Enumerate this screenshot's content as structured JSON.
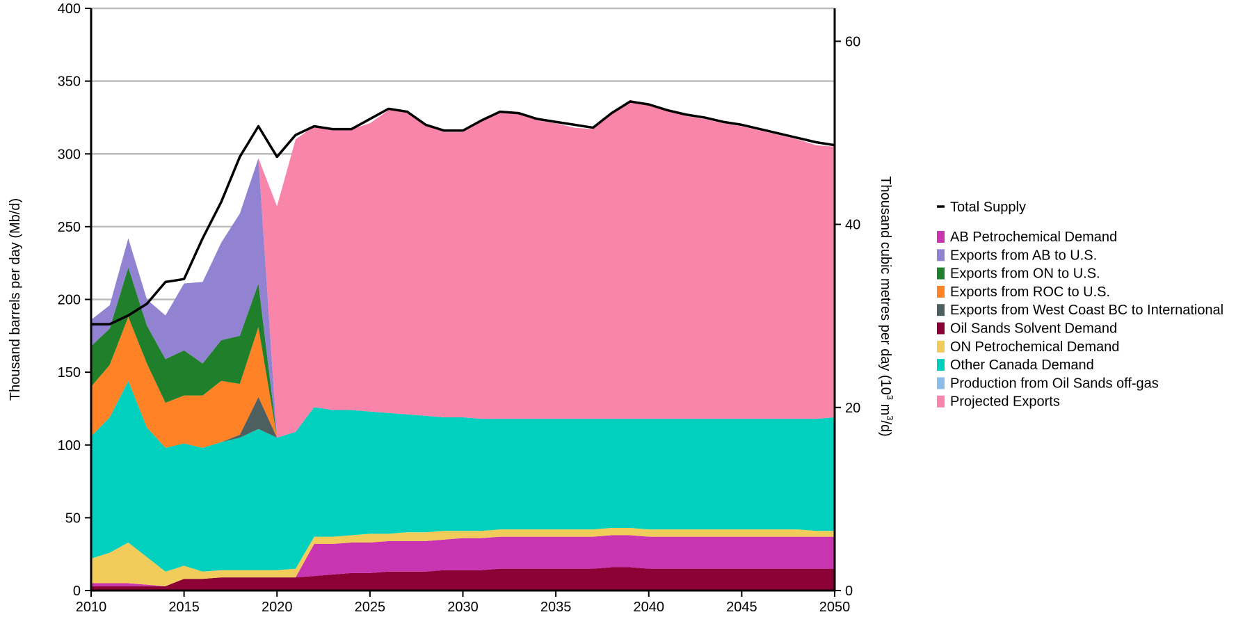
{
  "chart_data": {
    "type": "area",
    "title": "",
    "ylabel": "Thousand barrels per day (Mb/d)",
    "y2label_main": "Thousand cubic metres per day (10",
    "y2label_sup": "3",
    "y2label_mid": " m",
    "y2label_sup2": "3",
    "y2label_end": "/d)",
    "xlim": [
      2010,
      2050
    ],
    "ylim": [
      0,
      400
    ],
    "y2lim": [
      0,
      63.6
    ],
    "x_ticks": [
      "2010",
      "2015",
      "2020",
      "2025",
      "2030",
      "2035",
      "2040",
      "2045",
      "2050"
    ],
    "y_ticks": [
      "0",
      "50",
      "100",
      "150",
      "200",
      "250",
      "300",
      "350",
      "400"
    ],
    "y2_ticks": [
      "0",
      "20",
      "40",
      "60"
    ],
    "grid": "horizontal",
    "legend_position": "right",
    "x": [
      2010,
      2011,
      2012,
      2013,
      2014,
      2015,
      2016,
      2017,
      2018,
      2019,
      2020,
      2021,
      2022,
      2023,
      2024,
      2025,
      2026,
      2027,
      2028,
      2029,
      2030,
      2031,
      2032,
      2033,
      2034,
      2035,
      2036,
      2037,
      2038,
      2039,
      2040,
      2041,
      2042,
      2043,
      2044,
      2045,
      2046,
      2047,
      2048,
      2049,
      2050
    ],
    "series": [
      {
        "name": "Oil Sands Solvent Demand",
        "color": "#8B0035",
        "values": [
          3,
          3,
          3,
          3,
          3,
          8,
          8,
          9,
          9,
          9,
          9,
          9,
          10,
          11,
          12,
          12,
          13,
          13,
          13,
          14,
          14,
          14,
          15,
          15,
          15,
          15,
          15,
          15,
          16,
          16,
          15,
          15,
          15,
          15,
          15,
          15,
          15,
          15,
          15,
          15,
          15
        ]
      },
      {
        "name": "AB Petrochemical Demand",
        "color": "#C935B0",
        "values": [
          2,
          2,
          2,
          1,
          0,
          0,
          0,
          0,
          0,
          0,
          0,
          0,
          22,
          21,
          21,
          21,
          21,
          21,
          21,
          21,
          22,
          22,
          22,
          22,
          22,
          22,
          22,
          22,
          22,
          22,
          22,
          22,
          22,
          22,
          22,
          22,
          22,
          22,
          22,
          22,
          22
        ]
      },
      {
        "name": "ON Petrochemical Demand",
        "color": "#F2CC5B",
        "values": [
          17,
          21,
          28,
          19,
          10,
          9,
          5,
          5,
          5,
          5,
          5,
          6,
          5,
          5,
          5,
          6,
          5,
          6,
          6,
          6,
          5,
          5,
          5,
          5,
          5,
          5,
          5,
          5,
          5,
          5,
          5,
          5,
          5,
          5,
          5,
          5,
          5,
          5,
          5,
          4,
          4
        ]
      },
      {
        "name": "Other Canada Demand",
        "color": "#00D0BD",
        "values": [
          84,
          93,
          111,
          89,
          85,
          84,
          85,
          88,
          91,
          97,
          91,
          94,
          89,
          87,
          86,
          84,
          83,
          81,
          80,
          78,
          78,
          77,
          76,
          76,
          76,
          76,
          76,
          76,
          75,
          75,
          76,
          76,
          76,
          76,
          76,
          76,
          76,
          76,
          76,
          77,
          78
        ]
      },
      {
        "name": "Production from Oil Sands off-gas",
        "color": "#8CBDE8",
        "values": [
          0,
          0,
          0,
          0,
          0,
          0,
          0,
          0,
          0,
          0,
          0,
          0,
          0,
          0,
          0,
          0,
          0,
          0,
          0,
          0,
          0,
          0,
          0,
          0,
          0,
          0,
          0,
          0,
          0,
          0,
          0,
          0,
          0,
          0,
          0,
          0,
          0,
          0,
          0,
          0,
          0
        ]
      },
      {
        "name": "Exports from West Coast BC to International",
        "color": "#4D5F5F",
        "values": [
          0,
          0,
          0,
          0,
          0,
          0,
          0,
          0,
          2,
          22,
          0,
          0,
          0,
          0,
          0,
          0,
          0,
          0,
          0,
          0,
          0,
          0,
          0,
          0,
          0,
          0,
          0,
          0,
          0,
          0,
          0,
          0,
          0,
          0,
          0,
          0,
          0,
          0,
          0,
          0,
          0
        ]
      },
      {
        "name": "Exports from ROC to U.S.",
        "color": "#FF8226",
        "values": [
          34,
          36,
          44,
          44,
          31,
          33,
          36,
          42,
          35,
          48,
          0,
          0,
          0,
          0,
          0,
          0,
          0,
          0,
          0,
          0,
          0,
          0,
          0,
          0,
          0,
          0,
          0,
          0,
          0,
          0,
          0,
          0,
          0,
          0,
          0,
          0,
          0,
          0,
          0,
          0,
          0
        ]
      },
      {
        "name": "Exports from ON to U.S.",
        "color": "#1F7F2A",
        "values": [
          28,
          25,
          34,
          26,
          30,
          31,
          22,
          28,
          33,
          30,
          0,
          0,
          0,
          0,
          0,
          0,
          0,
          0,
          0,
          0,
          0,
          0,
          0,
          0,
          0,
          0,
          0,
          0,
          0,
          0,
          0,
          0,
          0,
          0,
          0,
          0,
          0,
          0,
          0,
          0,
          0
        ]
      },
      {
        "name": "Exports from AB to U.S.",
        "color": "#9283D2",
        "values": [
          18,
          16,
          20,
          18,
          30,
          46,
          56,
          67,
          84,
          86,
          0,
          0,
          0,
          0,
          0,
          0,
          0,
          0,
          0,
          0,
          0,
          0,
          0,
          0,
          0,
          0,
          0,
          0,
          0,
          0,
          0,
          0,
          0,
          0,
          0,
          0,
          0,
          0,
          0,
          0,
          0
        ]
      },
      {
        "name": "Projected Exports",
        "color": "#F985AB",
        "values": [
          0,
          0,
          0,
          0,
          0,
          0,
          0,
          0,
          0,
          0,
          159,
          201,
          193,
          193,
          193,
          198,
          208,
          209,
          200,
          196,
          196,
          205,
          211,
          210,
          205,
          203,
          200,
          199,
          210,
          219,
          216,
          212,
          208,
          206,
          203,
          201,
          198,
          195,
          192,
          188,
          186
        ]
      }
    ],
    "total_supply": {
      "name": "Total Supply",
      "color": "#000000",
      "values": [
        183,
        183,
        189,
        197,
        212,
        214,
        242,
        267,
        298,
        319,
        298,
        313,
        319,
        317,
        317,
        324,
        331,
        329,
        320,
        316,
        316,
        323,
        329,
        328,
        324,
        322,
        320,
        318,
        328,
        336,
        334,
        330,
        327,
        325,
        322,
        320,
        317,
        314,
        311,
        308,
        306
      ]
    },
    "legend_order": [
      "Total Supply",
      "AB Petrochemical Demand",
      "Exports from AB to U.S.",
      "Exports from ON to U.S.",
      "Exports from ROC to U.S.",
      "Exports from West Coast BC to International",
      "Oil Sands Solvent Demand",
      "ON Petrochemical Demand",
      "Other Canada Demand",
      "Production from Oil Sands off-gas",
      "Projected Exports"
    ]
  }
}
